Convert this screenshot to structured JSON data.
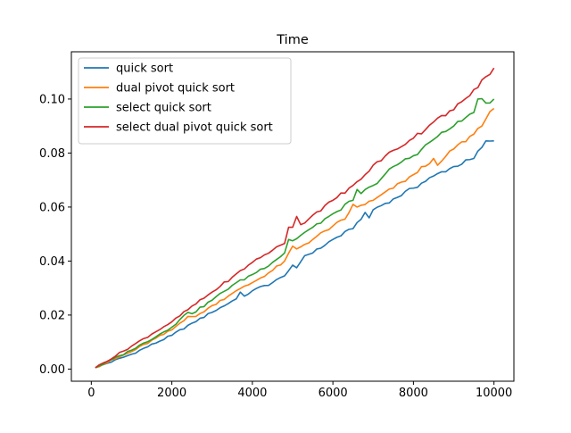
{
  "chart_data": {
    "type": "line",
    "title": "Time",
    "xlabel": "",
    "ylabel": "",
    "xlim": [
      -495,
      10495
    ],
    "ylim": [
      -0.0045,
      0.1175
    ],
    "x_ticks": [
      0,
      2000,
      4000,
      6000,
      8000,
      10000
    ],
    "x_tick_labels": [
      "0",
      "2000",
      "4000",
      "6000",
      "8000",
      "10000"
    ],
    "y_ticks": [
      0.0,
      0.02,
      0.04,
      0.06,
      0.08,
      0.1
    ],
    "y_tick_labels": [
      "0.00",
      "0.02",
      "0.04",
      "0.06",
      "0.08",
      "0.10"
    ],
    "grid": false,
    "legend_position": "top-left",
    "x_start": 100,
    "x_step": 100,
    "x_end": 10000,
    "series": [
      {
        "name": "quick sort",
        "color": "#1f77b4",
        "anchors": [
          [
            100,
            0.0005
          ],
          [
            1000,
            0.0055
          ],
          [
            2000,
            0.0125
          ],
          [
            2500,
            0.017
          ],
          [
            3000,
            0.021
          ],
          [
            3600,
            0.026
          ],
          [
            3700,
            0.0285
          ],
          [
            3800,
            0.027
          ],
          [
            4000,
            0.029
          ],
          [
            4500,
            0.032
          ],
          [
            4800,
            0.0345
          ],
          [
            5000,
            0.0385
          ],
          [
            5100,
            0.0375
          ],
          [
            5300,
            0.042
          ],
          [
            5500,
            0.043
          ],
          [
            6000,
            0.048
          ],
          [
            6500,
            0.052
          ],
          [
            6800,
            0.058
          ],
          [
            6900,
            0.056
          ],
          [
            7000,
            0.059
          ],
          [
            7500,
            0.063
          ],
          [
            8000,
            0.067
          ],
          [
            8500,
            0.0715
          ],
          [
            9000,
            0.075
          ],
          [
            9500,
            0.078
          ],
          [
            9800,
            0.0845
          ],
          [
            10000,
            0.0845
          ]
        ]
      },
      {
        "name": "dual pivot quick sort",
        "color": "#ff7f0e",
        "anchors": [
          [
            100,
            0.0005
          ],
          [
            1000,
            0.0065
          ],
          [
            2000,
            0.0145
          ],
          [
            2400,
            0.0195
          ],
          [
            2600,
            0.0195
          ],
          [
            3000,
            0.0235
          ],
          [
            3500,
            0.028
          ],
          [
            4000,
            0.032
          ],
          [
            4500,
            0.0365
          ],
          [
            4800,
            0.04
          ],
          [
            5000,
            0.0455
          ],
          [
            5100,
            0.0445
          ],
          [
            5500,
            0.048
          ],
          [
            6000,
            0.053
          ],
          [
            6300,
            0.0555
          ],
          [
            6500,
            0.061
          ],
          [
            6600,
            0.06
          ],
          [
            7000,
            0.0625
          ],
          [
            7500,
            0.067
          ],
          [
            8000,
            0.072
          ],
          [
            8500,
            0.078
          ],
          [
            8600,
            0.0755
          ],
          [
            9000,
            0.0815
          ],
          [
            9500,
            0.087
          ],
          [
            10000,
            0.0965
          ]
        ]
      },
      {
        "name": "select quick sort",
        "color": "#2ca02c",
        "anchors": [
          [
            100,
            0.0005
          ],
          [
            1000,
            0.007
          ],
          [
            2000,
            0.0155
          ],
          [
            2400,
            0.021
          ],
          [
            2500,
            0.0205
          ],
          [
            3000,
            0.0255
          ],
          [
            3500,
            0.031
          ],
          [
            4000,
            0.035
          ],
          [
            4500,
            0.0395
          ],
          [
            4800,
            0.043
          ],
          [
            4900,
            0.048
          ],
          [
            5000,
            0.0475
          ],
          [
            5500,
            0.0525
          ],
          [
            6000,
            0.0575
          ],
          [
            6500,
            0.0625
          ],
          [
            6600,
            0.0665
          ],
          [
            6700,
            0.065
          ],
          [
            7000,
            0.068
          ],
          [
            7500,
            0.075
          ],
          [
            8000,
            0.079
          ],
          [
            8500,
            0.085
          ],
          [
            9000,
            0.09
          ],
          [
            9500,
            0.095
          ],
          [
            9600,
            0.1
          ],
          [
            9800,
            0.0985
          ],
          [
            10000,
            0.1
          ]
        ]
      },
      {
        "name": "select dual pivot quick sort",
        "color": "#d62728",
        "anchors": [
          [
            100,
            0.0005
          ],
          [
            1000,
            0.0085
          ],
          [
            2000,
            0.0175
          ],
          [
            2400,
            0.022
          ],
          [
            3000,
            0.0285
          ],
          [
            3500,
            0.034
          ],
          [
            4000,
            0.0395
          ],
          [
            4500,
            0.044
          ],
          [
            4800,
            0.0465
          ],
          [
            4900,
            0.0525
          ],
          [
            5000,
            0.0525
          ],
          [
            5100,
            0.0565
          ],
          [
            5200,
            0.0535
          ],
          [
            5500,
            0.057
          ],
          [
            6000,
            0.0625
          ],
          [
            6500,
            0.068
          ],
          [
            6800,
            0.072
          ],
          [
            7000,
            0.0755
          ],
          [
            7500,
            0.081
          ],
          [
            8000,
            0.0855
          ],
          [
            8500,
            0.0915
          ],
          [
            9000,
            0.096
          ],
          [
            9500,
            0.1035
          ],
          [
            10000,
            0.1115
          ]
        ]
      }
    ]
  }
}
